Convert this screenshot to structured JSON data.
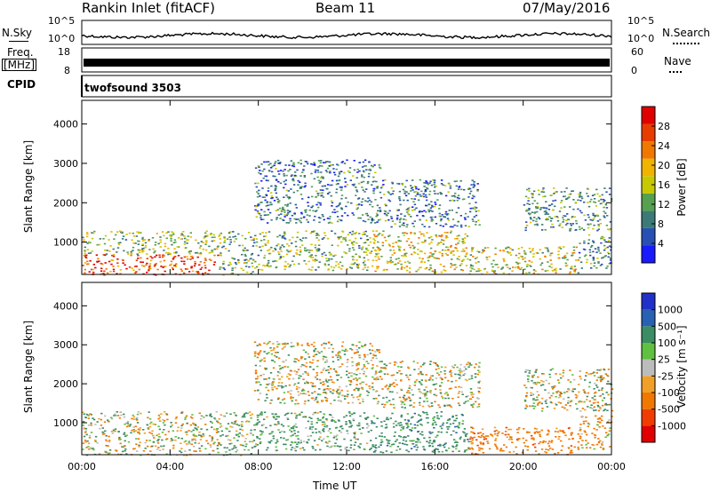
{
  "header": {
    "station": "Rankin Inlet (fitACF)",
    "beam": "Beam 11",
    "date": "07/May/2016"
  },
  "nsky_panel": {
    "label": "N.Sky",
    "left_ticks": [
      "10^5",
      "10^0"
    ],
    "right_ticks": [
      "10^5",
      "10^0"
    ],
    "right_label": "N.Search"
  },
  "freq_panel": {
    "label_line1": "Freq.",
    "label_line2": "[MHz]",
    "left_ticks": [
      "18",
      "8"
    ],
    "right_ticks": [
      "60",
      "0"
    ],
    "right_label": "Nave"
  },
  "cpid_panel": {
    "label": "CPID",
    "mode": "twofsound 3503"
  },
  "colors": {
    "power": [
      "#1a1aff",
      "#2850b4",
      "#3c7a78",
      "#56a050",
      "#c8c800",
      "#f0b400",
      "#f07800",
      "#e83c00",
      "#e00000"
    ],
    "velocity": [
      "#e00000",
      "#f03c00",
      "#f07800",
      "#f0a028",
      "#bcbcbc",
      "#60c040",
      "#3c8c64",
      "#2860b4",
      "#2030c8"
    ]
  },
  "chart_data": [
    {
      "type": "heatmap",
      "title": "",
      "ylabel": "Slant Range [km]",
      "xlabel": "",
      "ylim": [
        180,
        4600
      ],
      "xlim": [
        0,
        24
      ],
      "y_ticks": [
        "1000",
        "2000",
        "3000",
        "4000"
      ],
      "colorbar": {
        "label": "Power [dB]",
        "ticks": [
          "4",
          "8",
          "12",
          "16",
          "20",
          "24",
          "28"
        ],
        "range": [
          0,
          32
        ]
      },
      "echo_regions": [
        {
          "t0": 0.0,
          "t1": 6.2,
          "r0": 180,
          "r1": 700,
          "level": 27
        },
        {
          "t0": 0.0,
          "t1": 6.2,
          "r0": 700,
          "r1": 1300,
          "level": 14
        },
        {
          "t0": 6.2,
          "t1": 7.8,
          "r0": 180,
          "r1": 1300,
          "level": 12
        },
        {
          "t0": 7.8,
          "t1": 13.0,
          "r0": 300,
          "r1": 1300,
          "level": 13
        },
        {
          "t0": 7.8,
          "t1": 13.5,
          "r0": 1500,
          "r1": 3100,
          "level": 8
        },
        {
          "t0": 13.0,
          "t1": 17.5,
          "r0": 250,
          "r1": 1300,
          "level": 18
        },
        {
          "t0": 13.5,
          "t1": 18.0,
          "r0": 1400,
          "r1": 2600,
          "level": 9
        },
        {
          "t0": 17.5,
          "t1": 22.5,
          "r0": 200,
          "r1": 900,
          "level": 16
        },
        {
          "t0": 20.0,
          "t1": 24.0,
          "r0": 1300,
          "r1": 2400,
          "level": 11
        },
        {
          "t0": 22.5,
          "t1": 24.0,
          "r0": 300,
          "r1": 1200,
          "level": 10
        }
      ]
    },
    {
      "type": "heatmap",
      "title": "",
      "ylabel": "Slant Range [km]",
      "xlabel": "Time UT",
      "ylim": [
        180,
        4600
      ],
      "xlim": [
        0,
        24
      ],
      "x_ticks": [
        "00:00",
        "04:00",
        "08:00",
        "12:00",
        "16:00",
        "20:00",
        "00:00"
      ],
      "y_ticks": [
        "1000",
        "2000",
        "3000",
        "4000"
      ],
      "colorbar": {
        "label": "Velocity [m s⁻¹]",
        "ticks": [
          "-1000",
          "-500",
          "-100",
          "-25",
          "25",
          "100",
          "500",
          "1000"
        ]
      },
      "echo_regions": [
        {
          "t0": 0.0,
          "t1": 6.2,
          "r0": 180,
          "r1": 700,
          "velocity": 0
        },
        {
          "t0": 0.0,
          "t1": 6.2,
          "r0": 700,
          "r1": 1300,
          "velocity": 0
        },
        {
          "t0": 6.2,
          "t1": 7.8,
          "r0": 180,
          "r1": 1300,
          "velocity": 150
        },
        {
          "t0": 7.8,
          "t1": 13.0,
          "r0": 300,
          "r1": 1300,
          "velocity": 200
        },
        {
          "t0": 7.8,
          "t1": 13.5,
          "r0": 1500,
          "r1": 3100,
          "velocity": 0
        },
        {
          "t0": 13.0,
          "t1": 17.5,
          "r0": 250,
          "r1": 1300,
          "velocity": 300
        },
        {
          "t0": 13.5,
          "t1": 18.0,
          "r0": 1400,
          "r1": 2600,
          "velocity": 0
        },
        {
          "t0": 17.5,
          "t1": 22.5,
          "r0": 200,
          "r1": 900,
          "velocity": -300
        },
        {
          "t0": 20.0,
          "t1": 24.0,
          "r0": 1300,
          "r1": 2400,
          "velocity": 0
        },
        {
          "t0": 22.5,
          "t1": 24.0,
          "r0": 300,
          "r1": 1200,
          "velocity": -150
        }
      ]
    }
  ]
}
